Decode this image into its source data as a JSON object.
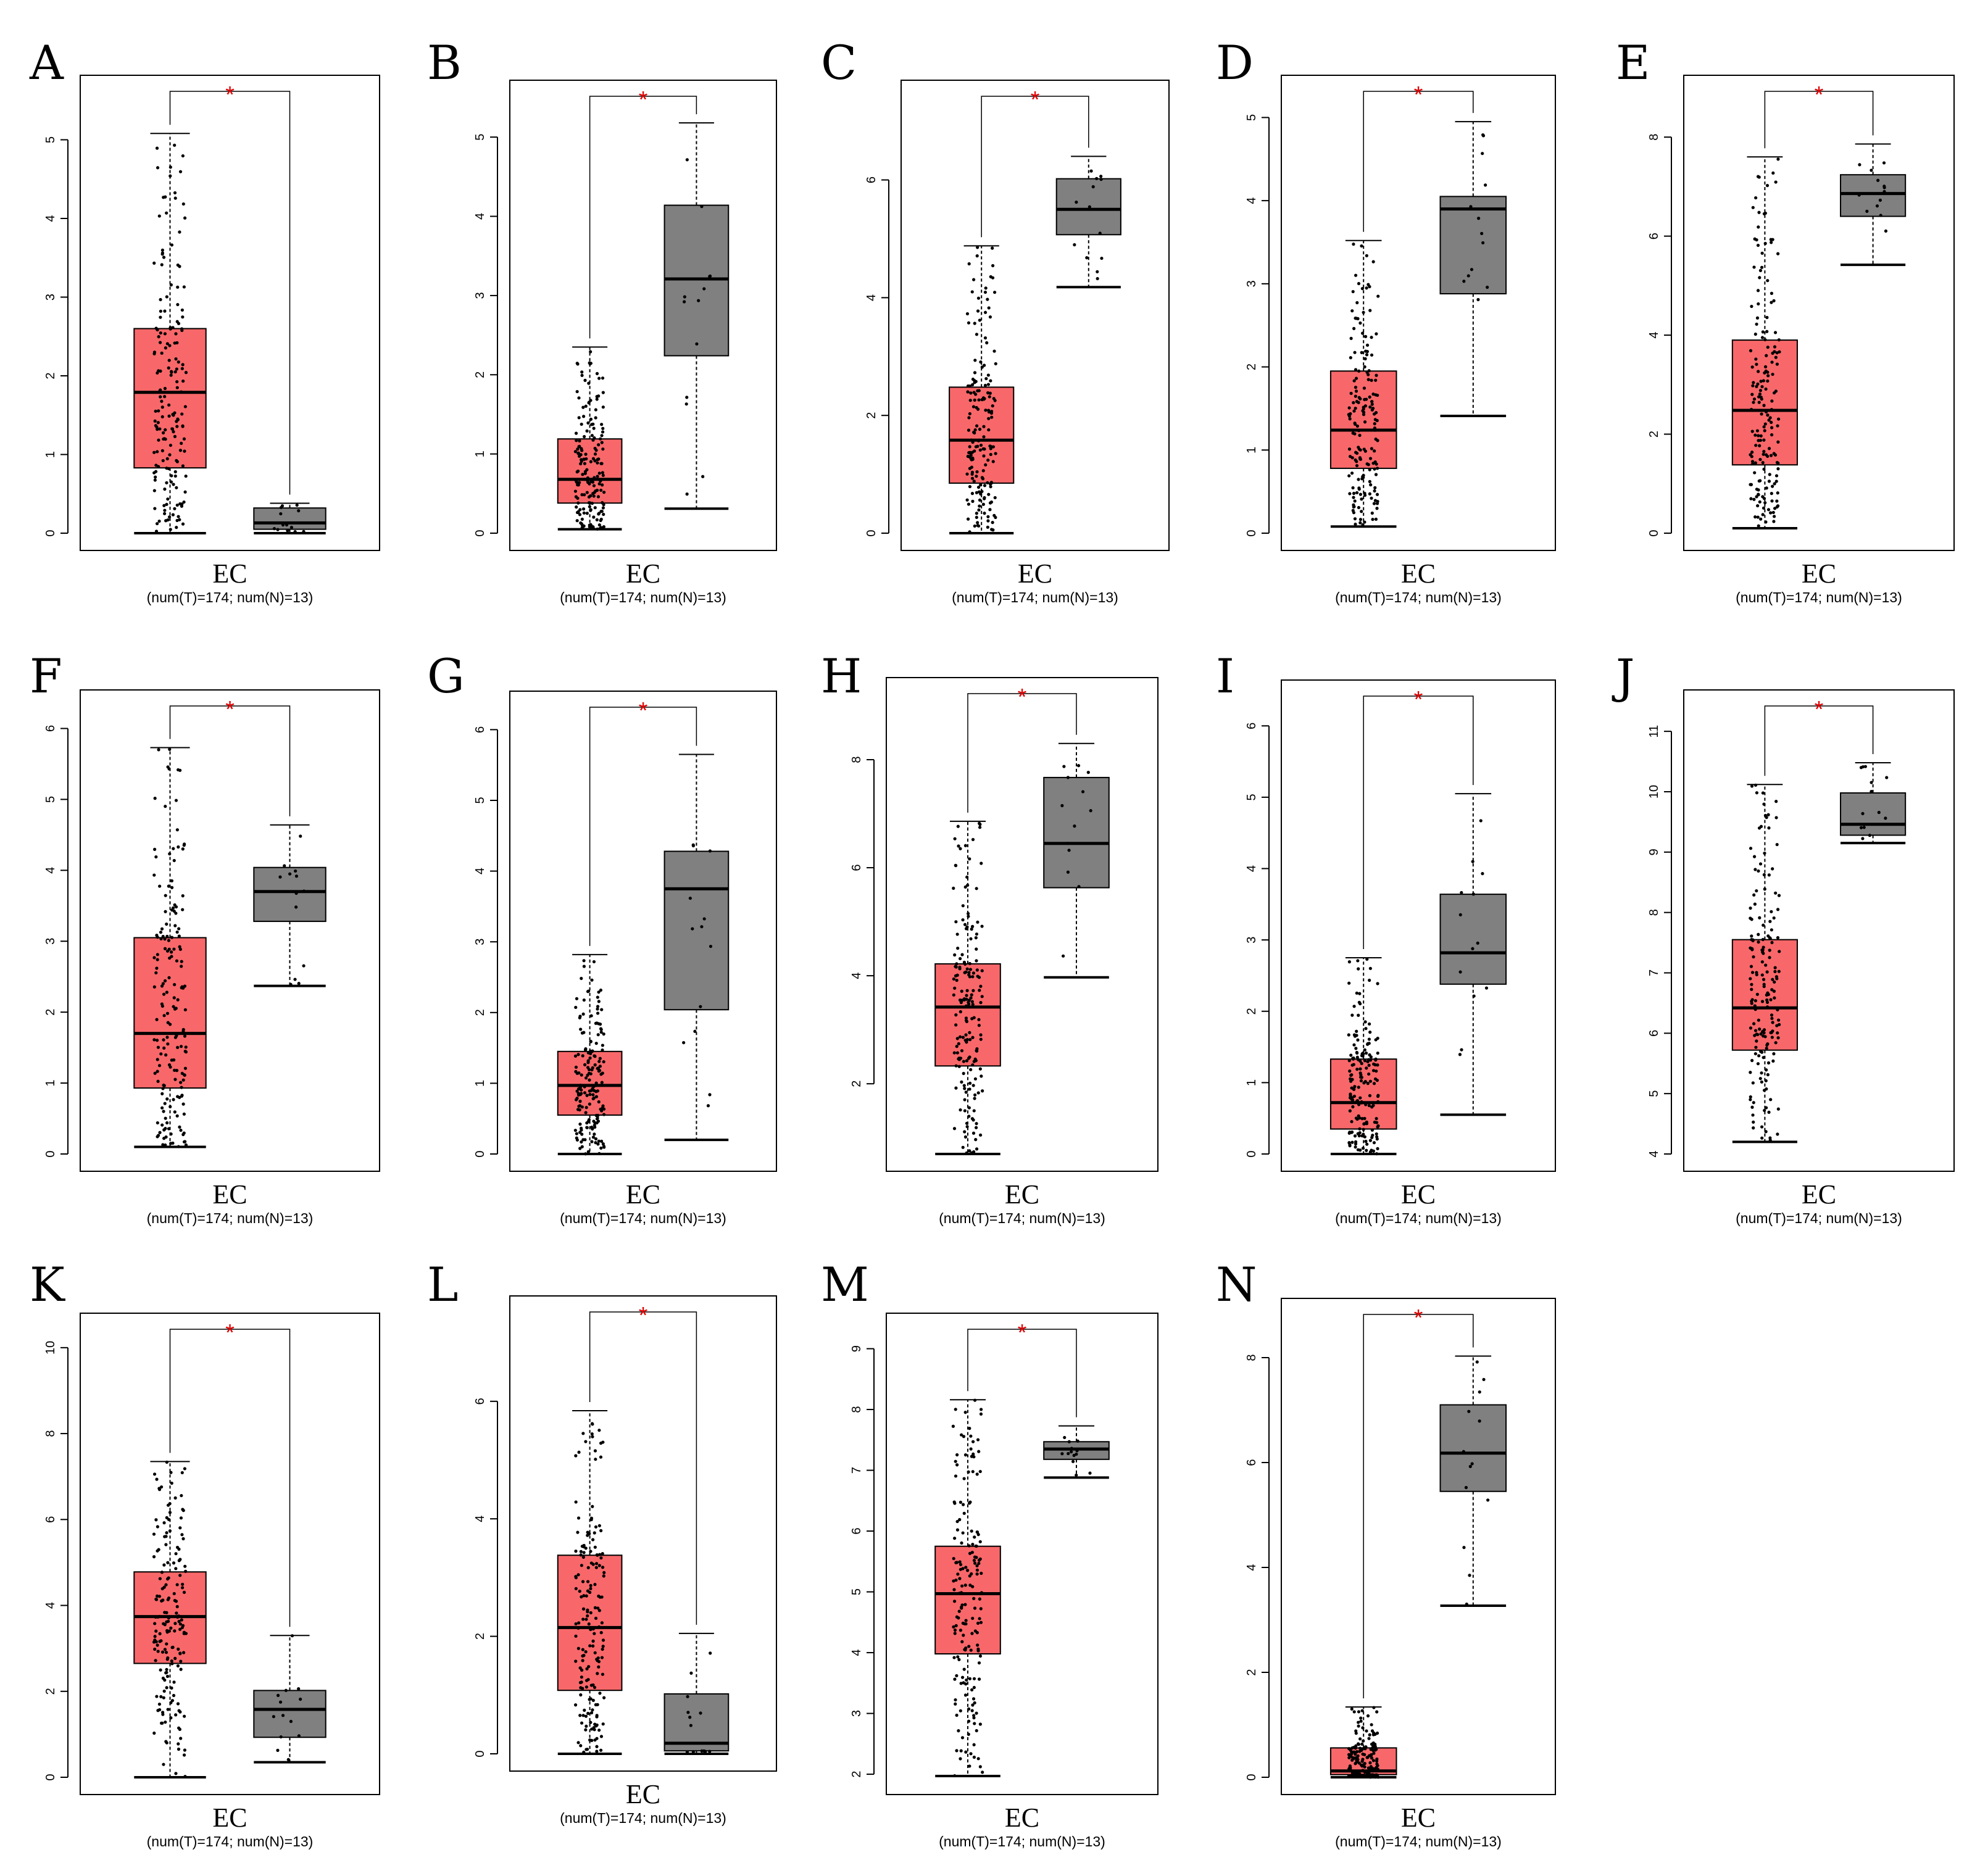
{
  "figure": {
    "tumor_color": "#f8686a",
    "normal_color": "#808080",
    "significance_color": "#e00000"
  },
  "chart_data": [
    {
      "panel": "A",
      "type": "box",
      "category": "EC",
      "subtitle": "(num(T)=174; num(N)=13)",
      "significance": "*",
      "yticks": [
        0,
        1,
        2,
        3,
        4,
        5
      ],
      "ylim": [
        0,
        5.6
      ],
      "tumor": {
        "q1": 0.83,
        "median": 1.79,
        "q3": 2.6,
        "whisker_low": 0.0,
        "whisker_high": 5.08,
        "n": 174
      },
      "normal": {
        "q1": 0.05,
        "median": 0.13,
        "q3": 0.32,
        "whisker_low": 0.0,
        "whisker_high": 0.38,
        "n": 13
      }
    },
    {
      "panel": "B",
      "type": "box",
      "category": "EC",
      "subtitle": "(num(T)=174; num(N)=13)",
      "significance": "*",
      "yticks": [
        0,
        1,
        2,
        3,
        4,
        5
      ],
      "ylim": [
        0,
        5.5
      ],
      "tumor": {
        "q1": 0.38,
        "median": 0.68,
        "q3": 1.19,
        "whisker_low": 0.05,
        "whisker_high": 2.35,
        "n": 174
      },
      "normal": {
        "q1": 2.24,
        "median": 3.21,
        "q3": 4.14,
        "whisker_low": 0.31,
        "whisker_high": 5.18,
        "n": 13
      }
    },
    {
      "panel": "C",
      "type": "box",
      "category": "EC",
      "subtitle": "(num(T)=174; num(N)=13)",
      "significance": "*",
      "yticks": [
        0,
        2,
        4,
        6
      ],
      "ylim": [
        0,
        7.4
      ],
      "tumor": {
        "q1": 0.85,
        "median": 1.58,
        "q3": 2.48,
        "whisker_low": 0.0,
        "whisker_high": 4.88,
        "n": 174
      },
      "normal": {
        "q1": 5.07,
        "median": 5.5,
        "q3": 6.02,
        "whisker_low": 4.18,
        "whisker_high": 6.4,
        "n": 13
      }
    },
    {
      "panel": "D",
      "type": "box",
      "category": "EC",
      "subtitle": "(num(T)=174; num(N)=13)",
      "significance": "*",
      "yticks": [
        0,
        1,
        2,
        3,
        4,
        5
      ],
      "ylim": [
        0,
        5.3
      ],
      "tumor": {
        "q1": 0.78,
        "median": 1.24,
        "q3": 1.95,
        "whisker_low": 0.08,
        "whisker_high": 3.52,
        "n": 174
      },
      "normal": {
        "q1": 2.88,
        "median": 3.9,
        "q3": 4.05,
        "whisker_low": 1.41,
        "whisker_high": 4.95,
        "n": 13
      }
    },
    {
      "panel": "E",
      "type": "box",
      "category": "EC",
      "subtitle": "(num(T)=174; num(N)=13)",
      "significance": "*",
      "yticks": [
        0,
        2,
        4,
        6,
        8
      ],
      "ylim": [
        0,
        8.9
      ],
      "tumor": {
        "q1": 1.38,
        "median": 2.48,
        "q3": 3.9,
        "whisker_low": 0.1,
        "whisker_high": 7.6,
        "n": 174
      },
      "normal": {
        "q1": 6.4,
        "median": 6.86,
        "q3": 7.24,
        "whisker_low": 5.42,
        "whisker_high": 7.86,
        "n": 13
      }
    },
    {
      "panel": "F",
      "type": "box",
      "category": "EC",
      "subtitle": "(num(T)=174; num(N)=13)",
      "significance": "*",
      "yticks": [
        0,
        1,
        2,
        3,
        4,
        5,
        6
      ],
      "ylim": [
        0,
        6.3
      ],
      "tumor": {
        "q1": 0.93,
        "median": 1.7,
        "q3": 3.05,
        "whisker_low": 0.1,
        "whisker_high": 5.73,
        "n": 174
      },
      "normal": {
        "q1": 3.28,
        "median": 3.7,
        "q3": 4.04,
        "whisker_low": 2.37,
        "whisker_high": 4.64,
        "n": 13
      }
    },
    {
      "panel": "G",
      "type": "box",
      "category": "EC",
      "subtitle": "(num(T)=174; num(N)=13)",
      "significance": "*",
      "yticks": [
        0,
        1,
        2,
        3,
        4,
        5,
        6
      ],
      "ylim": [
        0,
        6.3
      ],
      "tumor": {
        "q1": 0.55,
        "median": 0.97,
        "q3": 1.45,
        "whisker_low": 0.0,
        "whisker_high": 2.82,
        "n": 174
      },
      "normal": {
        "q1": 2.04,
        "median": 3.75,
        "q3": 4.28,
        "whisker_low": 0.2,
        "whisker_high": 5.65,
        "n": 13
      }
    },
    {
      "panel": "H",
      "type": "box",
      "category": "EC",
      "subtitle": "(num(T)=174; num(N)=13)",
      "significance": "*",
      "yticks": [
        2,
        4,
        6,
        8
      ],
      "ylim": [
        0.7,
        9.2
      ],
      "tumor": {
        "q1": 2.33,
        "median": 3.42,
        "q3": 4.22,
        "whisker_low": 0.7,
        "whisker_high": 6.86,
        "n": 174
      },
      "normal": {
        "q1": 5.63,
        "median": 6.45,
        "q3": 7.67,
        "whisker_low": 3.97,
        "whisker_high": 8.3,
        "n": 13
      }
    },
    {
      "panel": "I",
      "type": "box",
      "category": "EC",
      "subtitle": "(num(T)=174; num(N)=13)",
      "significance": "*",
      "yticks": [
        0,
        1,
        2,
        3,
        4,
        5,
        6
      ],
      "ylim": [
        0,
        6.4
      ],
      "tumor": {
        "q1": 0.35,
        "median": 0.72,
        "q3": 1.33,
        "whisker_low": 0.0,
        "whisker_high": 2.75,
        "n": 174
      },
      "normal": {
        "q1": 2.38,
        "median": 2.82,
        "q3": 3.64,
        "whisker_low": 0.55,
        "whisker_high": 5.05,
        "n": 13
      }
    },
    {
      "panel": "J",
      "type": "box",
      "category": "EC",
      "subtitle": "(num(T)=174; num(N)=13)",
      "significance": "*",
      "yticks": [
        4,
        5,
        6,
        7,
        8,
        9,
        10,
        11
      ],
      "ylim": [
        4,
        11.4
      ],
      "tumor": {
        "q1": 5.72,
        "median": 6.42,
        "q3": 7.55,
        "whisker_low": 4.2,
        "whisker_high": 10.12,
        "n": 174
      },
      "normal": {
        "q1": 9.28,
        "median": 9.46,
        "q3": 9.98,
        "whisker_low": 9.15,
        "whisker_high": 10.48,
        "n": 13
      }
    },
    {
      "panel": "K",
      "type": "box",
      "category": "EC",
      "subtitle": "(num(T)=174; num(N)=13)",
      "significance": "*",
      "yticks": [
        0,
        2,
        4,
        6,
        8,
        10
      ],
      "ylim": [
        0,
        10.4
      ],
      "tumor": {
        "q1": 2.65,
        "median": 3.74,
        "q3": 4.78,
        "whisker_low": 0.0,
        "whisker_high": 7.35,
        "n": 174
      },
      "normal": {
        "q1": 0.93,
        "median": 1.58,
        "q3": 2.02,
        "whisker_low": 0.35,
        "whisker_high": 3.3,
        "n": 13
      }
    },
    {
      "panel": "L",
      "type": "box",
      "category": "EC",
      "subtitle": "(num(T)=174; num(N)=13)",
      "significance": "*",
      "yticks": [
        0,
        2,
        4,
        6
      ],
      "ylim": [
        0,
        7.5
      ],
      "tumor": {
        "q1": 1.08,
        "median": 2.15,
        "q3": 3.38,
        "whisker_low": 0.0,
        "whisker_high": 5.84,
        "n": 174
      },
      "normal": {
        "q1": 0.05,
        "median": 0.18,
        "q3": 1.02,
        "whisker_low": 0.0,
        "whisker_high": 2.05,
        "n": 13
      }
    },
    {
      "panel": "M",
      "type": "box",
      "category": "EC",
      "subtitle": "(num(T)=174; num(N)=13)",
      "significance": "*",
      "yticks": [
        2,
        3,
        4,
        5,
        6,
        7,
        8,
        9
      ],
      "ylim": [
        1.95,
        9.3
      ],
      "tumor": {
        "q1": 3.98,
        "median": 4.97,
        "q3": 5.75,
        "whisker_low": 1.97,
        "whisker_high": 8.16,
        "n": 174
      },
      "normal": {
        "q1": 7.18,
        "median": 7.35,
        "q3": 7.47,
        "whisker_low": 6.88,
        "whisker_high": 7.73,
        "n": 13
      }
    },
    {
      "panel": "N",
      "type": "box",
      "category": "EC",
      "subtitle": "(num(T)=174; num(N)=13)",
      "significance": "*",
      "yticks": [
        0,
        2,
        4,
        6,
        8
      ],
      "ylim": [
        0,
        8.8
      ],
      "tumor": {
        "q1": 0.05,
        "median": 0.12,
        "q3": 0.56,
        "whisker_low": 0.0,
        "whisker_high": 1.34,
        "n": 174
      },
      "normal": {
        "q1": 5.45,
        "median": 6.18,
        "q3": 7.1,
        "whisker_low": 3.27,
        "whisker_high": 8.03,
        "n": 13
      }
    }
  ]
}
